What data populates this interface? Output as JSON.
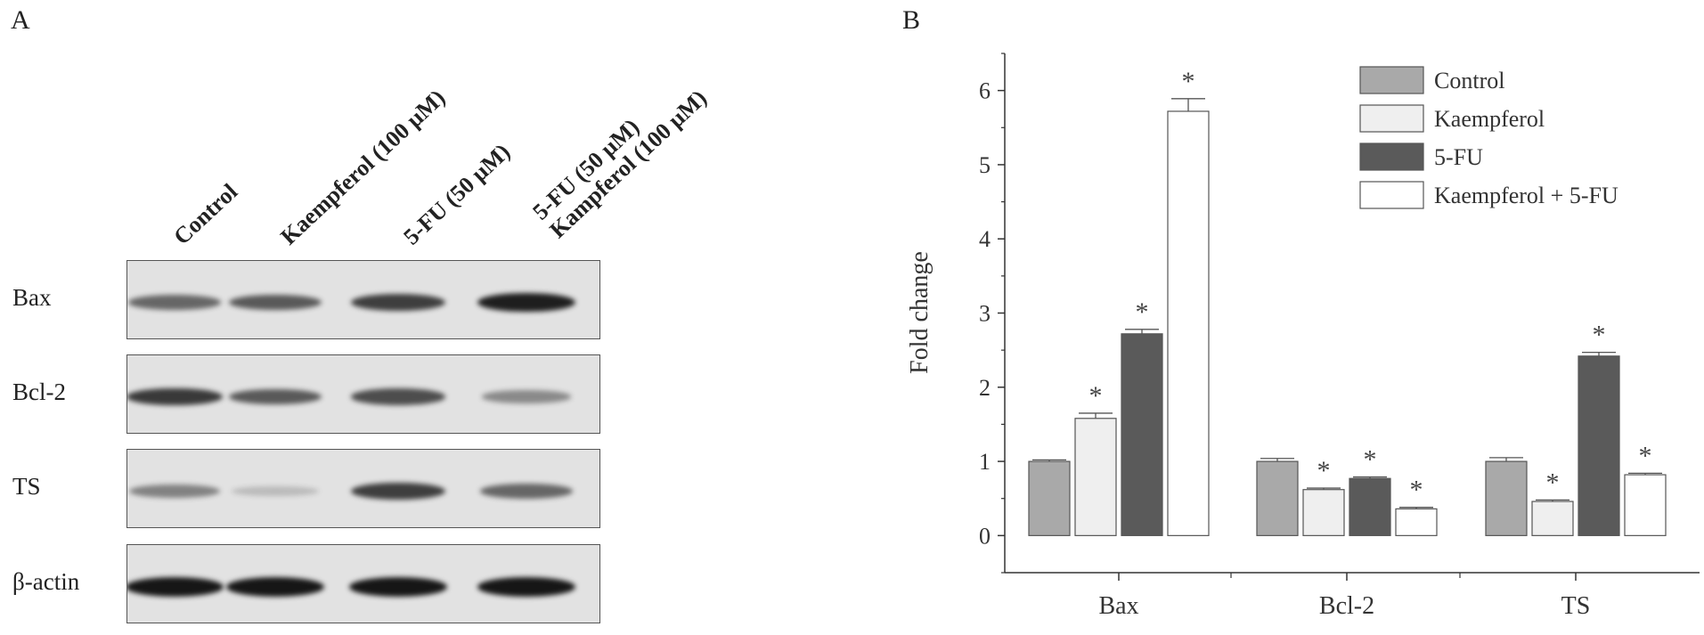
{
  "panels": {
    "a": "A",
    "b": "B"
  },
  "blot": {
    "lanes": [
      {
        "lines": [
          "Control"
        ]
      },
      {
        "lines": [
          "Kaempferol (100 μM)"
        ]
      },
      {
        "lines": [
          "5-FU (50 μM)"
        ]
      },
      {
        "lines": [
          "5-FU (50 μM)",
          "Kampferol (100 μM)"
        ]
      }
    ],
    "rows": [
      {
        "label": "Bax",
        "intensities": [
          0.55,
          0.62,
          0.78,
          0.95
        ]
      },
      {
        "label": "Bcl-2",
        "intensities": [
          0.8,
          0.62,
          0.7,
          0.35
        ]
      },
      {
        "label": "TS",
        "intensities": [
          0.4,
          0.08,
          0.78,
          0.55
        ]
      },
      {
        "label": "β-actin",
        "intensities": [
          1.0,
          1.0,
          1.0,
          1.0
        ]
      }
    ]
  },
  "chart_data": {
    "type": "bar",
    "categories": [
      "Bax",
      "Bcl-2",
      "TS"
    ],
    "ylabel": "Fold change",
    "ylim": [
      -0.5,
      6.5
    ],
    "yticks": [
      0,
      1,
      2,
      3,
      4,
      5,
      6
    ],
    "legend_position": "top-right",
    "significance_marker": "*",
    "series": [
      {
        "name": "Control",
        "color": "#a9a9a9",
        "values": [
          1.0,
          1.0,
          1.0
        ],
        "errors": [
          0.02,
          0.04,
          0.05
        ],
        "significant": [
          false,
          false,
          false
        ]
      },
      {
        "name": "Kaempferol",
        "color": "#efefef",
        "values": [
          1.58,
          0.62,
          0.46
        ],
        "errors": [
          0.07,
          0.02,
          0.02
        ],
        "significant": [
          true,
          true,
          true
        ]
      },
      {
        "name": "5-FU",
        "color": "#5a5a5a",
        "values": [
          2.72,
          0.77,
          2.42
        ],
        "errors": [
          0.06,
          0.02,
          0.05
        ],
        "significant": [
          true,
          true,
          true
        ]
      },
      {
        "name": "Kaempferol + 5-FU",
        "color": "#ffffff",
        "values": [
          5.72,
          0.36,
          0.82
        ],
        "errors": [
          0.17,
          0.02,
          0.02
        ],
        "significant": [
          true,
          true,
          true
        ]
      }
    ]
  }
}
